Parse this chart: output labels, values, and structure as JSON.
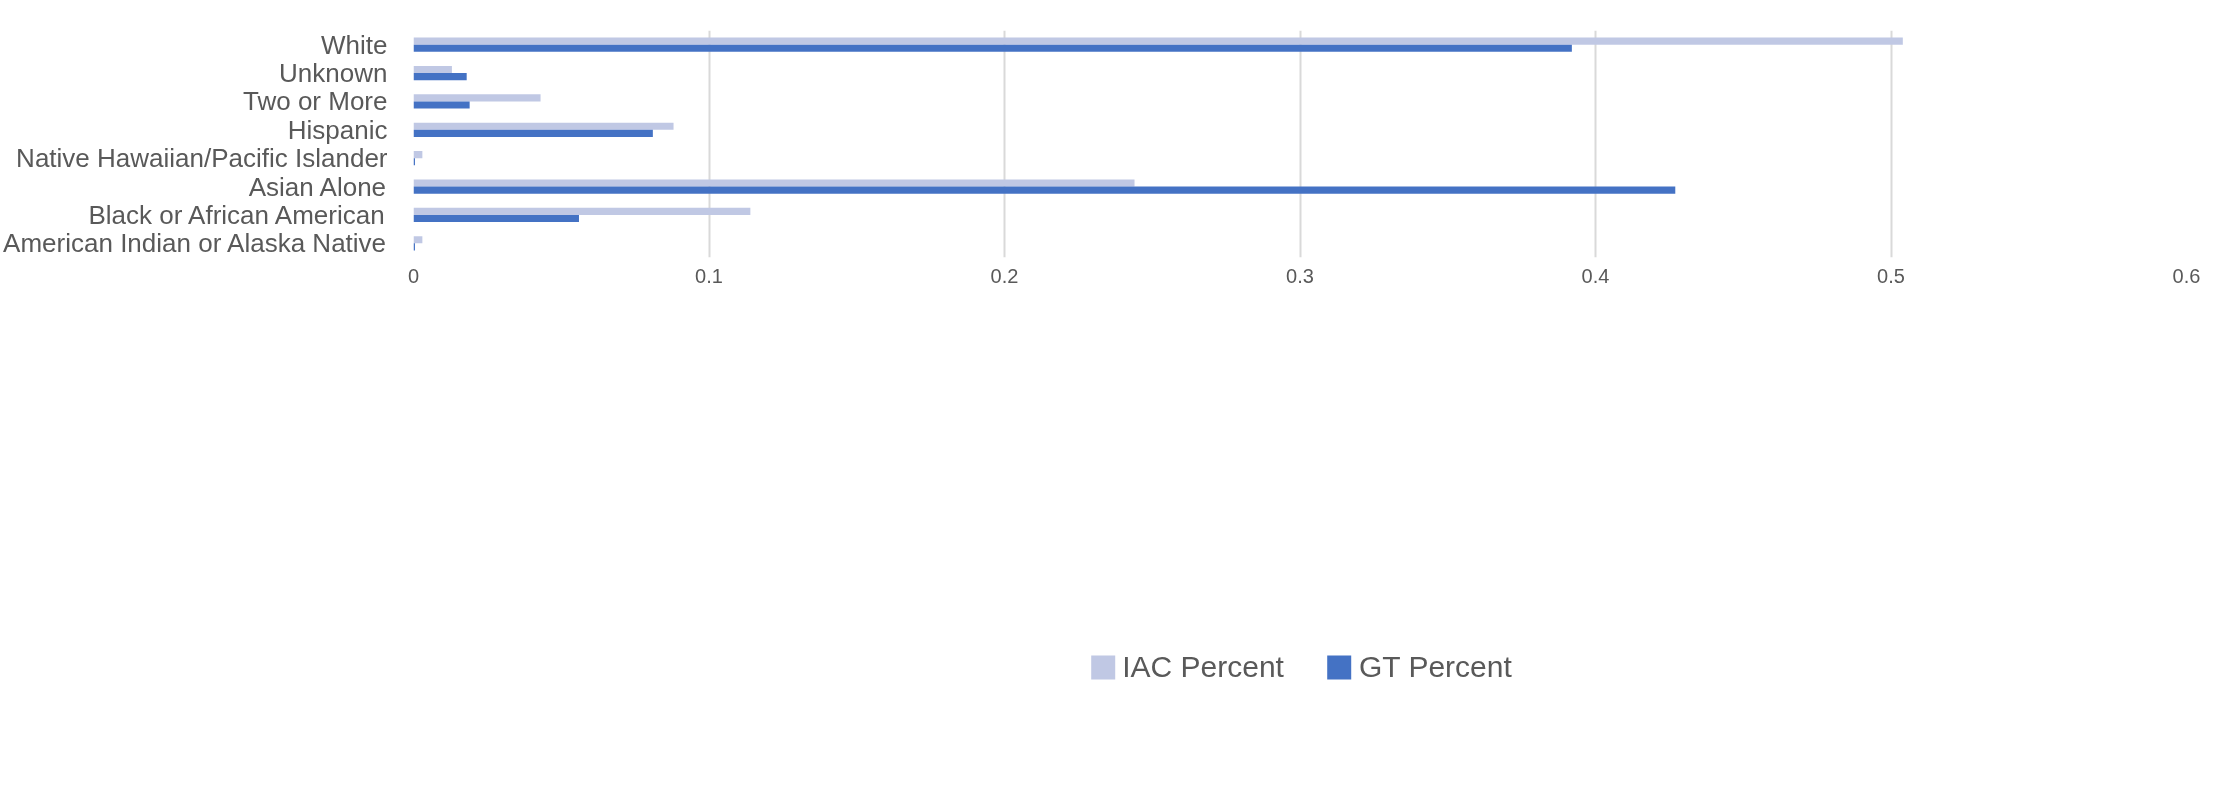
{
  "chart_data": {
    "type": "bar",
    "orientation": "horizontal",
    "categories": [
      "White",
      "Unknown",
      "Two or More",
      "Hispanic",
      "Native Hawaiian/Pacific Islander",
      "Asian Alone",
      "Black or African American",
      "American Indian or Alaska Native"
    ],
    "series": [
      {
        "name": "IAC Percent",
        "color": "#c0c8e4",
        "values": [
          0.504,
          0.013,
          0.043,
          0.088,
          0.003,
          0.244,
          0.114,
          0.003
        ]
      },
      {
        "name": "GT Percent",
        "color": "#4472c4",
        "values": [
          0.392,
          0.018,
          0.019,
          0.081,
          0.0005,
          0.427,
          0.056,
          0.0005
        ]
      }
    ],
    "xlim": [
      0,
      0.6
    ],
    "xticks": [
      0,
      0.1,
      0.2,
      0.3,
      0.4,
      0.5,
      0.6
    ],
    "grid": "x",
    "legend": "bottom"
  }
}
